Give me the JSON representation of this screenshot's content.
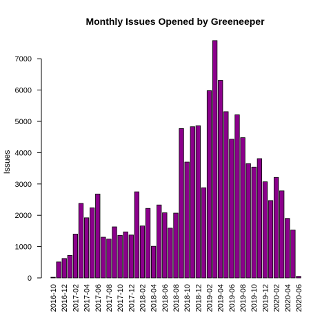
{
  "chart_data": {
    "type": "bar",
    "title": "Monthly Issues Opened by Greeneeper",
    "xlabel": "",
    "ylabel": "Issues",
    "ylim": [
      0,
      7700
    ],
    "yticks": [
      0,
      1000,
      2000,
      3000,
      4000,
      5000,
      6000,
      7000
    ],
    "bar_color": "#8B008B",
    "categories": [
      "2016-10",
      "2016-11",
      "2016-12",
      "2017-01",
      "2017-02",
      "2017-03",
      "2017-04",
      "2017-05",
      "2017-06",
      "2017-07",
      "2017-08",
      "2017-09",
      "2017-10",
      "2017-11",
      "2017-12",
      "2018-01",
      "2018-02",
      "2018-03",
      "2018-04",
      "2018-05",
      "2018-06",
      "2018-07",
      "2018-08",
      "2018-09",
      "2018-10",
      "2018-11",
      "2018-12",
      "2019-01",
      "2019-02",
      "2019-03",
      "2019-04",
      "2019-05",
      "2019-06",
      "2019-07",
      "2019-08",
      "2019-09",
      "2019-10",
      "2019-11",
      "2019-12",
      "2020-01",
      "2020-02",
      "2020-03",
      "2020-04",
      "2020-05",
      "2020-06"
    ],
    "x_tick_labels": [
      "2016-10",
      "2016-12",
      "2017-02",
      "2017-04",
      "2017-06",
      "2017-08",
      "2017-10",
      "2017-12",
      "2018-02",
      "2018-04",
      "2018-06",
      "2018-08",
      "2018-10",
      "2018-12",
      "2019-02",
      "2019-04",
      "2019-06",
      "2019-08",
      "2019-10",
      "2019-12",
      "2020-02",
      "2020-04",
      "2020-06"
    ],
    "values": [
      20,
      510,
      620,
      720,
      1400,
      2380,
      1920,
      2240,
      2680,
      1300,
      1240,
      1630,
      1360,
      1470,
      1370,
      2750,
      1660,
      2220,
      1010,
      2330,
      2080,
      1590,
      2070,
      4770,
      3700,
      4830,
      4860,
      2880,
      5980,
      7580,
      6310,
      5310,
      4430,
      5210,
      4480,
      3650,
      3540,
      3810,
      3070,
      2470,
      3210,
      2780,
      1900,
      1530,
      50
    ]
  }
}
